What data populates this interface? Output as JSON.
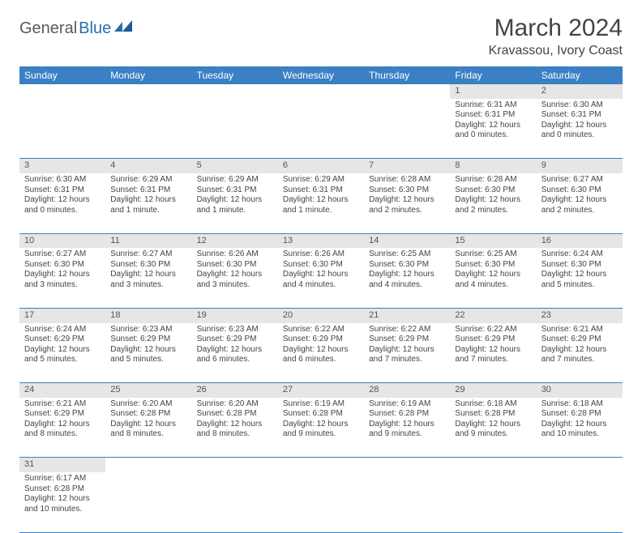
{
  "logo": {
    "text1": "General",
    "text2": "Blue"
  },
  "title": "March 2024",
  "location": "Kravassou, Ivory Coast",
  "colors": {
    "header_bg": "#3b7fc4",
    "header_text": "#ffffff",
    "daynum_bg": "#e6e6e6",
    "row_border": "#3b7fc4",
    "text": "#444444",
    "logo_gray": "#5a5a5a",
    "logo_blue": "#2b6cb0"
  },
  "weekdays": [
    "Sunday",
    "Monday",
    "Tuesday",
    "Wednesday",
    "Thursday",
    "Friday",
    "Saturday"
  ],
  "weeks": [
    [
      null,
      null,
      null,
      null,
      null,
      {
        "n": "1",
        "sr": "6:31 AM",
        "ss": "6:31 PM",
        "dl": "12 hours and 0 minutes."
      },
      {
        "n": "2",
        "sr": "6:30 AM",
        "ss": "6:31 PM",
        "dl": "12 hours and 0 minutes."
      }
    ],
    [
      {
        "n": "3",
        "sr": "6:30 AM",
        "ss": "6:31 PM",
        "dl": "12 hours and 0 minutes."
      },
      {
        "n": "4",
        "sr": "6:29 AM",
        "ss": "6:31 PM",
        "dl": "12 hours and 1 minute."
      },
      {
        "n": "5",
        "sr": "6:29 AM",
        "ss": "6:31 PM",
        "dl": "12 hours and 1 minute."
      },
      {
        "n": "6",
        "sr": "6:29 AM",
        "ss": "6:31 PM",
        "dl": "12 hours and 1 minute."
      },
      {
        "n": "7",
        "sr": "6:28 AM",
        "ss": "6:30 PM",
        "dl": "12 hours and 2 minutes."
      },
      {
        "n": "8",
        "sr": "6:28 AM",
        "ss": "6:30 PM",
        "dl": "12 hours and 2 minutes."
      },
      {
        "n": "9",
        "sr": "6:27 AM",
        "ss": "6:30 PM",
        "dl": "12 hours and 2 minutes."
      }
    ],
    [
      {
        "n": "10",
        "sr": "6:27 AM",
        "ss": "6:30 PM",
        "dl": "12 hours and 3 minutes."
      },
      {
        "n": "11",
        "sr": "6:27 AM",
        "ss": "6:30 PM",
        "dl": "12 hours and 3 minutes."
      },
      {
        "n": "12",
        "sr": "6:26 AM",
        "ss": "6:30 PM",
        "dl": "12 hours and 3 minutes."
      },
      {
        "n": "13",
        "sr": "6:26 AM",
        "ss": "6:30 PM",
        "dl": "12 hours and 4 minutes."
      },
      {
        "n": "14",
        "sr": "6:25 AM",
        "ss": "6:30 PM",
        "dl": "12 hours and 4 minutes."
      },
      {
        "n": "15",
        "sr": "6:25 AM",
        "ss": "6:30 PM",
        "dl": "12 hours and 4 minutes."
      },
      {
        "n": "16",
        "sr": "6:24 AM",
        "ss": "6:30 PM",
        "dl": "12 hours and 5 minutes."
      }
    ],
    [
      {
        "n": "17",
        "sr": "6:24 AM",
        "ss": "6:29 PM",
        "dl": "12 hours and 5 minutes."
      },
      {
        "n": "18",
        "sr": "6:23 AM",
        "ss": "6:29 PM",
        "dl": "12 hours and 5 minutes."
      },
      {
        "n": "19",
        "sr": "6:23 AM",
        "ss": "6:29 PM",
        "dl": "12 hours and 6 minutes."
      },
      {
        "n": "20",
        "sr": "6:22 AM",
        "ss": "6:29 PM",
        "dl": "12 hours and 6 minutes."
      },
      {
        "n": "21",
        "sr": "6:22 AM",
        "ss": "6:29 PM",
        "dl": "12 hours and 7 minutes."
      },
      {
        "n": "22",
        "sr": "6:22 AM",
        "ss": "6:29 PM",
        "dl": "12 hours and 7 minutes."
      },
      {
        "n": "23",
        "sr": "6:21 AM",
        "ss": "6:29 PM",
        "dl": "12 hours and 7 minutes."
      }
    ],
    [
      {
        "n": "24",
        "sr": "6:21 AM",
        "ss": "6:29 PM",
        "dl": "12 hours and 8 minutes."
      },
      {
        "n": "25",
        "sr": "6:20 AM",
        "ss": "6:28 PM",
        "dl": "12 hours and 8 minutes."
      },
      {
        "n": "26",
        "sr": "6:20 AM",
        "ss": "6:28 PM",
        "dl": "12 hours and 8 minutes."
      },
      {
        "n": "27",
        "sr": "6:19 AM",
        "ss": "6:28 PM",
        "dl": "12 hours and 9 minutes."
      },
      {
        "n": "28",
        "sr": "6:19 AM",
        "ss": "6:28 PM",
        "dl": "12 hours and 9 minutes."
      },
      {
        "n": "29",
        "sr": "6:18 AM",
        "ss": "6:28 PM",
        "dl": "12 hours and 9 minutes."
      },
      {
        "n": "30",
        "sr": "6:18 AM",
        "ss": "6:28 PM",
        "dl": "12 hours and 10 minutes."
      }
    ],
    [
      {
        "n": "31",
        "sr": "6:17 AM",
        "ss": "6:28 PM",
        "dl": "12 hours and 10 minutes."
      },
      null,
      null,
      null,
      null,
      null,
      null
    ]
  ],
  "labels": {
    "sunrise": "Sunrise:",
    "sunset": "Sunset:",
    "daylight": "Daylight:"
  }
}
